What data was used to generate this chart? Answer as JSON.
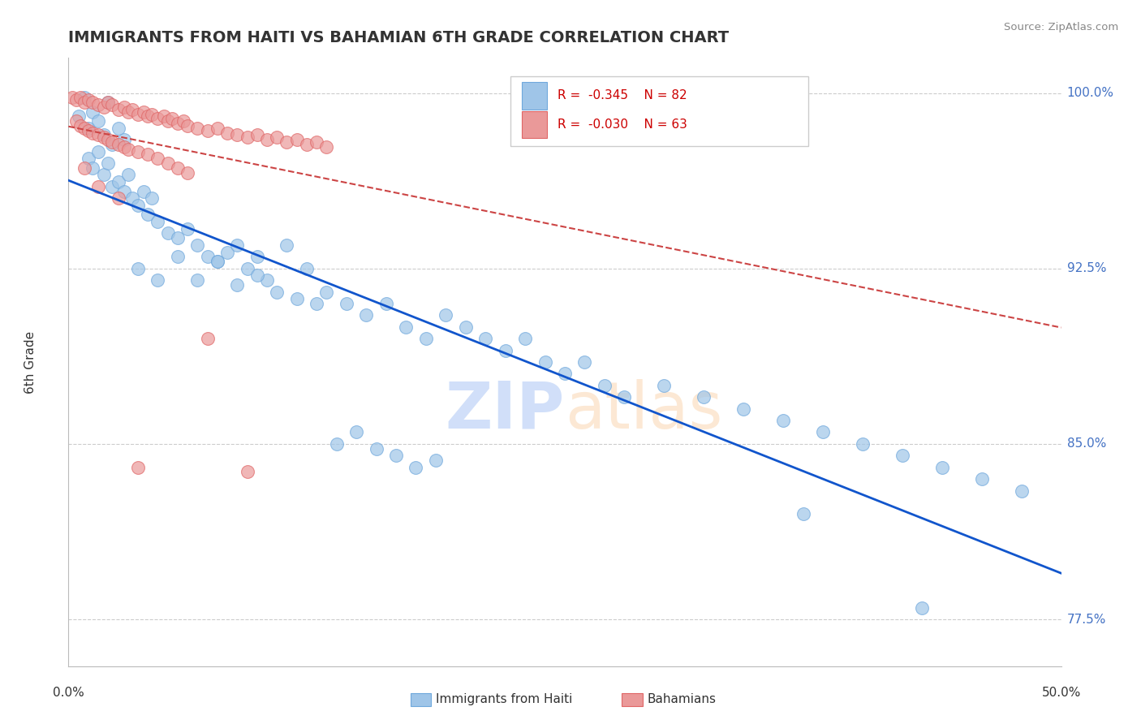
{
  "title": "IMMIGRANTS FROM HAITI VS BAHAMIAN 6TH GRADE CORRELATION CHART",
  "source": "Source: ZipAtlas.com",
  "ylabel": "6th Grade",
  "yticks": [
    0.775,
    0.85,
    0.925,
    1.0
  ],
  "ytick_labels": [
    "77.5%",
    "85.0%",
    "92.5%",
    "100.0%"
  ],
  "xmin": 0.0,
  "xmax": 0.5,
  "ymin": 0.755,
  "ymax": 1.015,
  "legend_r1": "-0.345",
  "legend_n1": "82",
  "legend_r2": "-0.030",
  "legend_n2": "63",
  "blue_color": "#9fc5e8",
  "pink_color": "#ea9999",
  "blue_line_color": "#1155cc",
  "pink_line_color": "#cc4444",
  "blue_edge_color": "#6fa8dc",
  "pink_edge_color": "#e06666",
  "blue_scatter_x": [
    0.005,
    0.008,
    0.01,
    0.012,
    0.015,
    0.018,
    0.02,
    0.022,
    0.025,
    0.028,
    0.01,
    0.012,
    0.015,
    0.018,
    0.02,
    0.022,
    0.025,
    0.028,
    0.03,
    0.032,
    0.035,
    0.038,
    0.04,
    0.042,
    0.045,
    0.05,
    0.055,
    0.06,
    0.065,
    0.07,
    0.075,
    0.08,
    0.085,
    0.09,
    0.095,
    0.1,
    0.11,
    0.12,
    0.13,
    0.14,
    0.15,
    0.16,
    0.17,
    0.18,
    0.19,
    0.2,
    0.21,
    0.22,
    0.23,
    0.24,
    0.25,
    0.26,
    0.27,
    0.28,
    0.3,
    0.32,
    0.34,
    0.36,
    0.38,
    0.4,
    0.42,
    0.44,
    0.46,
    0.48,
    0.035,
    0.045,
    0.055,
    0.065,
    0.075,
    0.085,
    0.095,
    0.105,
    0.115,
    0.125,
    0.135,
    0.145,
    0.155,
    0.165,
    0.175,
    0.185,
    0.37,
    0.43
  ],
  "blue_scatter_y": [
    0.99,
    0.998,
    0.985,
    0.992,
    0.988,
    0.982,
    0.996,
    0.978,
    0.985,
    0.98,
    0.972,
    0.968,
    0.975,
    0.965,
    0.97,
    0.96,
    0.962,
    0.958,
    0.965,
    0.955,
    0.952,
    0.958,
    0.948,
    0.955,
    0.945,
    0.94,
    0.938,
    0.942,
    0.935,
    0.93,
    0.928,
    0.932,
    0.935,
    0.925,
    0.93,
    0.92,
    0.935,
    0.925,
    0.915,
    0.91,
    0.905,
    0.91,
    0.9,
    0.895,
    0.905,
    0.9,
    0.895,
    0.89,
    0.895,
    0.885,
    0.88,
    0.885,
    0.875,
    0.87,
    0.875,
    0.87,
    0.865,
    0.86,
    0.855,
    0.85,
    0.845,
    0.84,
    0.835,
    0.83,
    0.925,
    0.92,
    0.93,
    0.92,
    0.928,
    0.918,
    0.922,
    0.915,
    0.912,
    0.91,
    0.85,
    0.855,
    0.848,
    0.845,
    0.84,
    0.843,
    0.82,
    0.78
  ],
  "pink_scatter_x": [
    0.002,
    0.004,
    0.006,
    0.008,
    0.01,
    0.012,
    0.015,
    0.018,
    0.02,
    0.022,
    0.025,
    0.028,
    0.03,
    0.032,
    0.035,
    0.038,
    0.04,
    0.042,
    0.045,
    0.048,
    0.05,
    0.052,
    0.055,
    0.058,
    0.06,
    0.065,
    0.07,
    0.075,
    0.08,
    0.085,
    0.09,
    0.095,
    0.1,
    0.105,
    0.11,
    0.115,
    0.12,
    0.125,
    0.13,
    0.004,
    0.006,
    0.008,
    0.01,
    0.012,
    0.015,
    0.018,
    0.02,
    0.022,
    0.025,
    0.028,
    0.03,
    0.035,
    0.04,
    0.045,
    0.05,
    0.055,
    0.06,
    0.008,
    0.015,
    0.025,
    0.035,
    0.07,
    0.09
  ],
  "pink_scatter_y": [
    0.998,
    0.997,
    0.998,
    0.996,
    0.997,
    0.996,
    0.995,
    0.994,
    0.996,
    0.995,
    0.993,
    0.994,
    0.992,
    0.993,
    0.991,
    0.992,
    0.99,
    0.991,
    0.989,
    0.99,
    0.988,
    0.989,
    0.987,
    0.988,
    0.986,
    0.985,
    0.984,
    0.985,
    0.983,
    0.982,
    0.981,
    0.982,
    0.98,
    0.981,
    0.979,
    0.98,
    0.978,
    0.979,
    0.977,
    0.988,
    0.986,
    0.985,
    0.984,
    0.983,
    0.982,
    0.981,
    0.98,
    0.979,
    0.978,
    0.977,
    0.976,
    0.975,
    0.974,
    0.972,
    0.97,
    0.968,
    0.966,
    0.968,
    0.96,
    0.955,
    0.84,
    0.895,
    0.838
  ]
}
